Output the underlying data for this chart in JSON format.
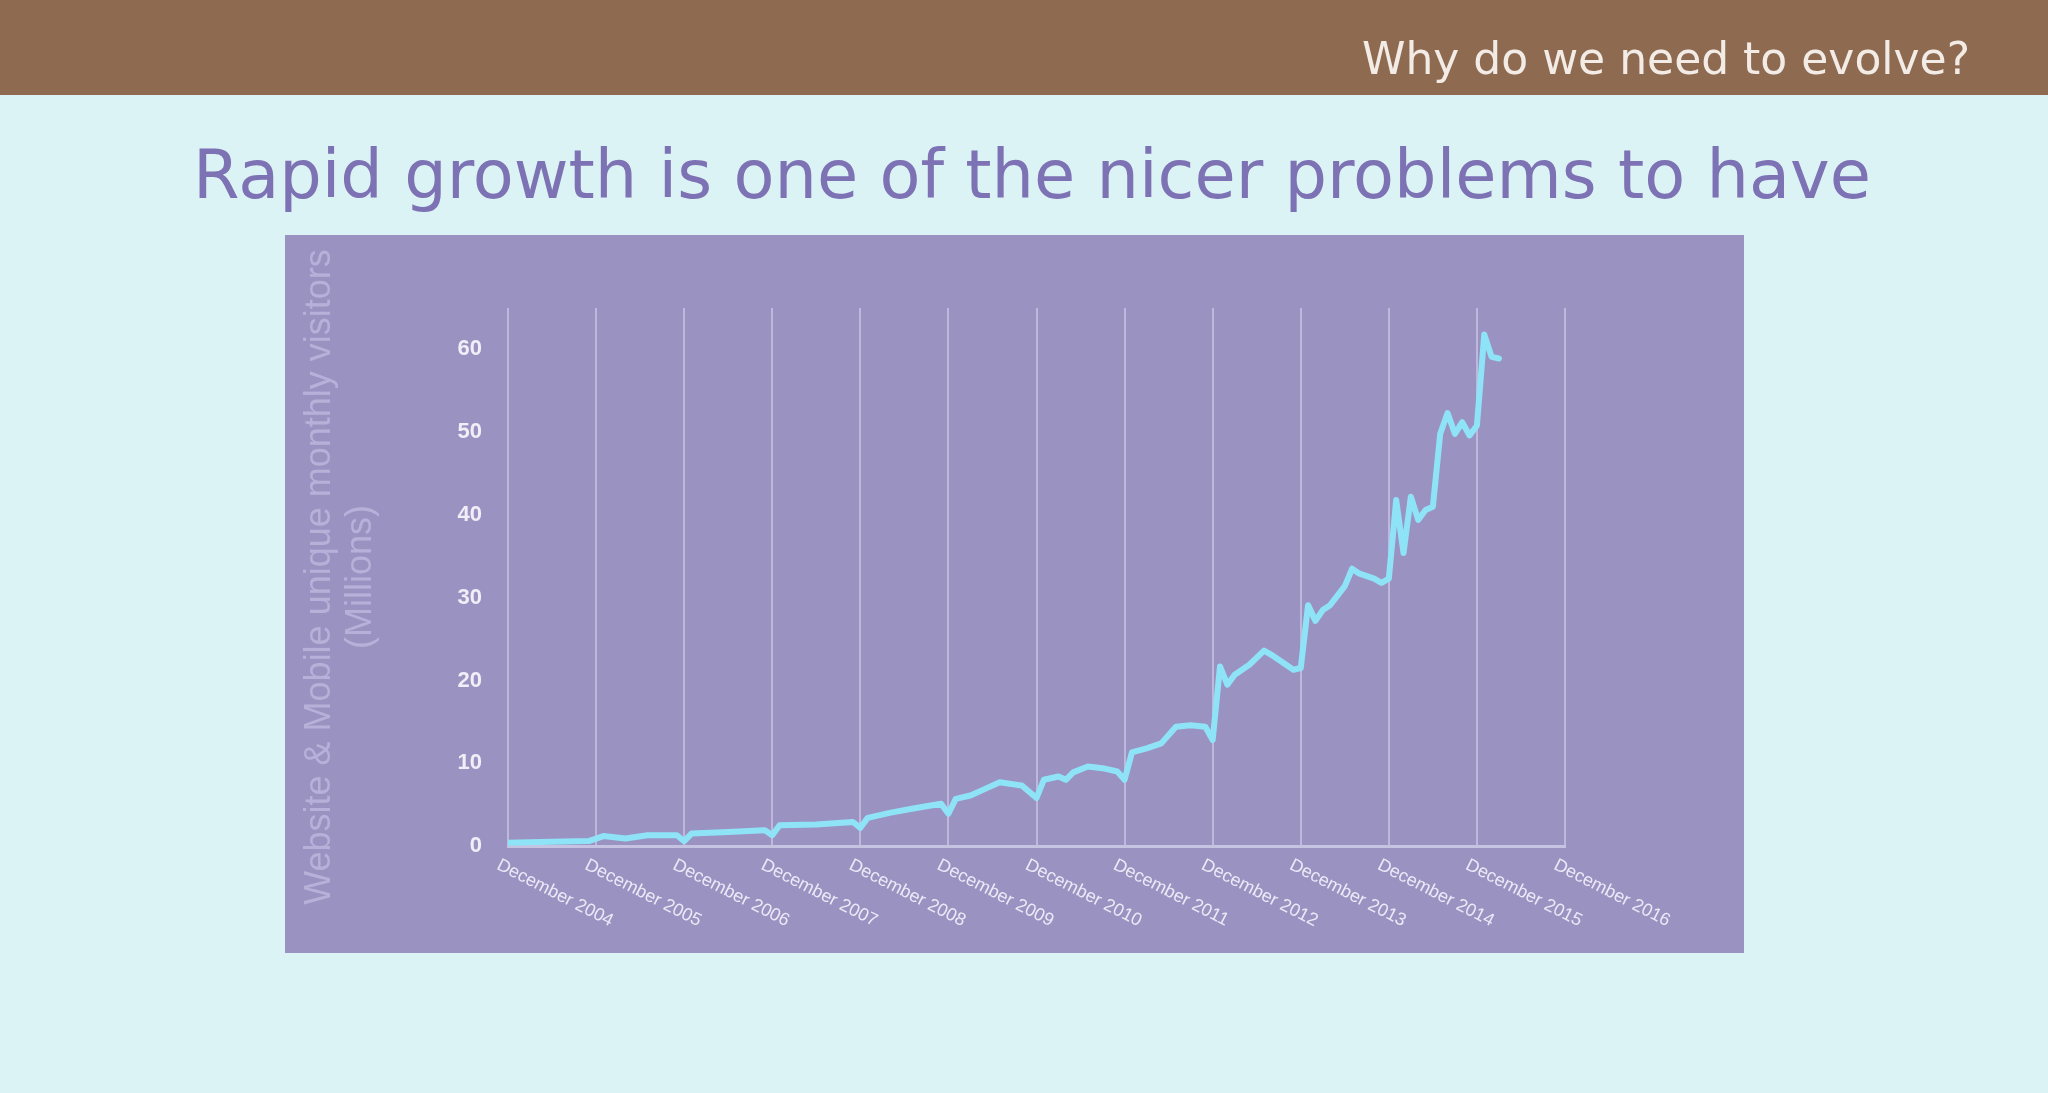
{
  "chart_data": {
    "type": "line",
    "title": "Rapid growth is one of the nicer problems to have",
    "annotations": [
      "Why do we need to evolve?"
    ],
    "ylabel": "Website & Mobile unique monthly visitors (Millions)",
    "x": [
      "2004-12",
      "2005-06",
      "2005-11",
      "2006-01",
      "2006-04",
      "2006-07",
      "2006-11",
      "2006-12",
      "2007-01",
      "2007-06",
      "2007-11",
      "2007-12",
      "2008-01",
      "2008-06",
      "2008-11",
      "2008-12",
      "2009-01",
      "2009-04",
      "2009-07",
      "2009-11",
      "2009-12",
      "2010-01",
      "2010-03",
      "2010-05",
      "2010-07",
      "2010-10",
      "2010-12",
      "2011-01",
      "2011-03",
      "2011-04",
      "2011-05",
      "2011-07",
      "2011-09",
      "2011-11",
      "2011-12",
      "2012-01",
      "2012-03",
      "2012-05",
      "2012-07",
      "2012-09",
      "2012-11",
      "2012-12",
      "2013-01",
      "2013-02",
      "2013-03",
      "2013-05",
      "2013-07",
      "2013-08",
      "2013-09",
      "2013-11",
      "2013-12",
      "2014-01",
      "2014-02",
      "2014-03",
      "2014-04",
      "2014-06",
      "2014-07",
      "2014-08",
      "2014-10",
      "2014-11",
      "2014-12",
      "2015-01",
      "2015-02",
      "2015-03",
      "2015-04",
      "2015-05",
      "2015-06",
      "2015-07",
      "2015-08",
      "2015-09",
      "2015-10",
      "2015-11",
      "2015-12",
      "2016-01",
      "2016-02",
      "2016-03"
    ],
    "series": [
      {
        "color": "#8fe3f7",
        "values": [
          0.4,
          0.5,
          0.6,
          1.2,
          0.9,
          1.3,
          1.3,
          0.6,
          1.5,
          1.7,
          1.9,
          1.3,
          2.5,
          2.6,
          2.9,
          2.2,
          3.4,
          4.0,
          4.5,
          5.1,
          3.9,
          5.7,
          6.1,
          6.9,
          7.7,
          7.3,
          5.8,
          8.0,
          8.4,
          8.0,
          8.9,
          9.6,
          9.4,
          9.0,
          8.0,
          11.3,
          11.8,
          12.4,
          14.4,
          14.6,
          14.4,
          12.8,
          21.7,
          19.5,
          20.7,
          21.9,
          23.6,
          23.1,
          22.5,
          21.3,
          21.5,
          29.1,
          27.2,
          28.5,
          29.1,
          31.4,
          33.5,
          32.9,
          32.3,
          31.8,
          32.3,
          41.8,
          35.4,
          42.2,
          39.4,
          40.6,
          41.0,
          49.8,
          52.3,
          49.8,
          51.2,
          49.6,
          50.8,
          61.8,
          59.1,
          58.9
        ]
      }
    ],
    "xlim": [
      "2004-12",
      "2016-12"
    ],
    "xticks": [
      {
        "value": "2004-12",
        "label": "December 2004"
      },
      {
        "value": "2005-12",
        "label": "December 2005"
      },
      {
        "value": "2006-12",
        "label": "December 2006"
      },
      {
        "value": "2007-12",
        "label": "December 2007"
      },
      {
        "value": "2008-12",
        "label": "December 2008"
      },
      {
        "value": "2009-12",
        "label": "December 2009"
      },
      {
        "value": "2010-12",
        "label": "December 2010"
      },
      {
        "value": "2011-12",
        "label": "December 2011"
      },
      {
        "value": "2012-12",
        "label": "December 2012"
      },
      {
        "value": "2013-12",
        "label": "December 2013"
      },
      {
        "value": "2014-12",
        "label": "December 2014"
      },
      {
        "value": "2015-12",
        "label": "December 2015"
      },
      {
        "value": "2016-12",
        "label": "December 2016"
      }
    ],
    "ylim": [
      0,
      65
    ],
    "yticks": [
      0,
      10,
      20,
      30,
      40,
      50,
      60
    ],
    "grid": "x",
    "marker": "none",
    "line_style": "solid"
  }
}
